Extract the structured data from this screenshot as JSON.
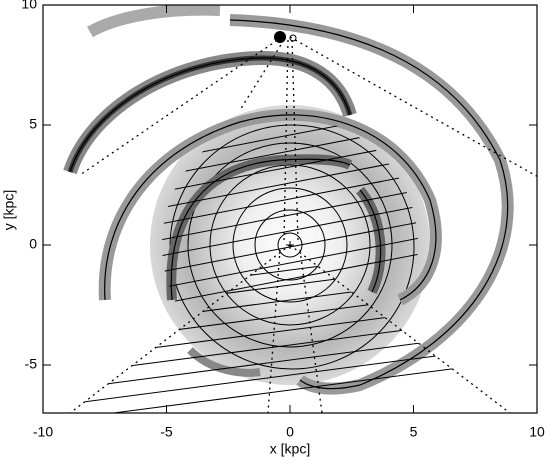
{
  "chart_data": {
    "type": "contour",
    "xlabel": "x [kpc]",
    "ylabel": "y [kpc]",
    "xlim": [
      -10,
      10
    ],
    "ylim": [
      -7,
      10
    ],
    "xticks": [
      -10,
      -5,
      0,
      5,
      10
    ],
    "yticks": [
      -5,
      0,
      5,
      10
    ]
  }
}
